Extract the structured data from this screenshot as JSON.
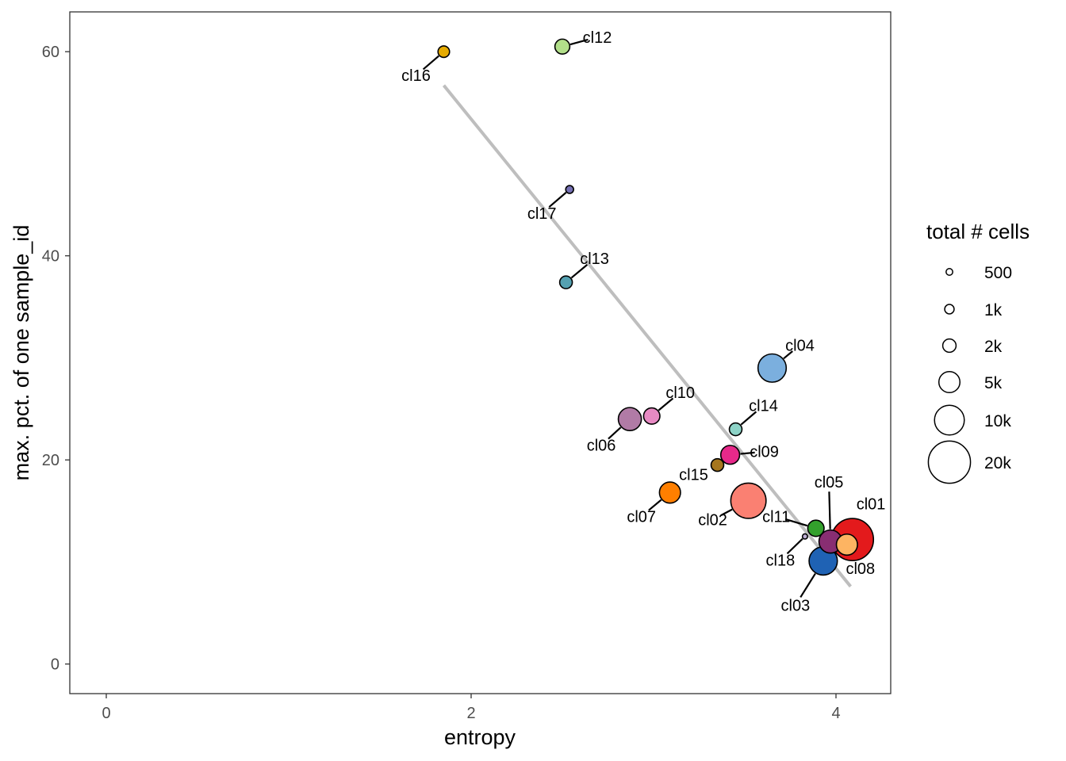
{
  "chart_data": {
    "type": "scatter",
    "title": "",
    "xlabel": "entropy",
    "ylabel": "max. pct. of one sample_id",
    "xlim": [
      -0.2,
      4.3
    ],
    "ylim": [
      -2.9,
      63.9
    ],
    "x_ticks": [
      0,
      2,
      4
    ],
    "y_ticks": [
      0,
      20,
      40,
      60
    ],
    "grid": false,
    "size_legend": {
      "title": "total # cells",
      "entries": [
        {
          "label": "500",
          "value": 500
        },
        {
          "label": "1k",
          "value": 1000
        },
        {
          "label": "2k",
          "value": 2000
        },
        {
          "label": "5k",
          "value": 5000
        },
        {
          "label": "10k",
          "value": 10000
        },
        {
          "label": "20k",
          "value": 20000
        }
      ]
    },
    "trend_line": {
      "x": [
        1.85,
        4.08
      ],
      "y": [
        56.7,
        7.6
      ],
      "color": "#bebebe"
    },
    "points": [
      {
        "label": "cl01",
        "x": 4.09,
        "y": 12.2,
        "size": 20000,
        "color": "#E31A1C"
      },
      {
        "label": "cl02",
        "x": 3.52,
        "y": 16.0,
        "size": 14000,
        "color": "#FA8072"
      },
      {
        "label": "cl03",
        "x": 3.93,
        "y": 10.1,
        "size": 9000,
        "color": "#1F62B4"
      },
      {
        "label": "cl04",
        "x": 3.65,
        "y": 29.0,
        "size": 9000,
        "color": "#7BAFDE"
      },
      {
        "label": "cl05",
        "x": 3.97,
        "y": 12.0,
        "size": 6000,
        "color": "#882E72"
      },
      {
        "label": "cl06",
        "x": 2.87,
        "y": 24.0,
        "size": 6000,
        "color": "#B17BA6"
      },
      {
        "label": "cl07",
        "x": 3.09,
        "y": 16.8,
        "size": 5000,
        "color": "#FF7F00"
      },
      {
        "label": "cl08",
        "x": 4.06,
        "y": 11.7,
        "size": 5000,
        "color": "#FDB462"
      },
      {
        "label": "cl09",
        "x": 3.42,
        "y": 20.5,
        "size": 4000,
        "color": "#E7298A"
      },
      {
        "label": "cl10",
        "x": 2.99,
        "y": 24.3,
        "size": 3000,
        "color": "#E78AC3"
      },
      {
        "label": "cl11",
        "x": 3.89,
        "y": 13.3,
        "size": 3000,
        "color": "#33A02C"
      },
      {
        "label": "cl12",
        "x": 2.5,
        "y": 60.5,
        "size": 2500,
        "color": "#B2DF8A"
      },
      {
        "label": "cl13",
        "x": 2.52,
        "y": 37.4,
        "size": 1800,
        "color": "#55A1B1"
      },
      {
        "label": "cl14",
        "x": 3.45,
        "y": 23.0,
        "size": 1800,
        "color": "#8DD3C7"
      },
      {
        "label": "cl15",
        "x": 3.35,
        "y": 19.5,
        "size": 1800,
        "color": "#A6761D"
      },
      {
        "label": "cl16",
        "x": 1.85,
        "y": 60.0,
        "size": 1500,
        "color": "#E6AB02"
      },
      {
        "label": "cl17",
        "x": 2.54,
        "y": 46.5,
        "size": 700,
        "color": "#7570B3"
      },
      {
        "label": "cl18",
        "x": 3.83,
        "y": 12.5,
        "size": 300,
        "color": "#BEAED4"
      }
    ]
  }
}
